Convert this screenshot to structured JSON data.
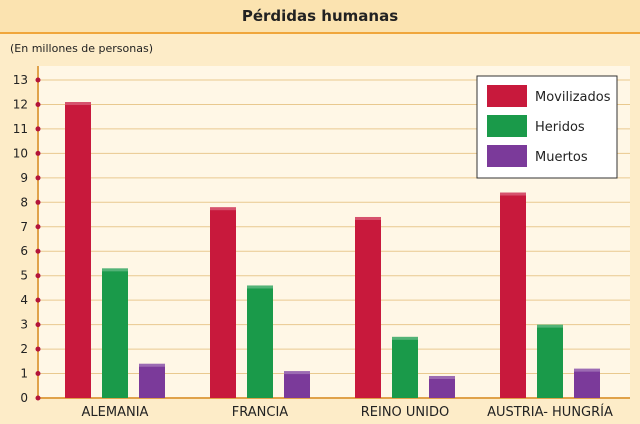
{
  "title": "Pérdidas humanas",
  "unit_label": "(En millones de personas)",
  "colors": {
    "background": "#fdecc8",
    "plot_background": "#fff7e6",
    "grid": "#e9c98f",
    "axis": "#e0a24a",
    "tick_dot": "#b3153a"
  },
  "chart_data": {
    "type": "bar",
    "categories": [
      "ALEMANIA",
      "FRANCIA",
      "REINO UNIDO",
      "AUSTRIA- HUNGRÍA"
    ],
    "series": [
      {
        "name": "Movilizados",
        "color": "#c8193c",
        "values": [
          12.1,
          7.8,
          7.4,
          8.4
        ]
      },
      {
        "name": "Heridos",
        "color": "#1a9a4a",
        "values": [
          5.3,
          4.6,
          2.5,
          3.0
        ]
      },
      {
        "name": "Muertos",
        "color": "#7b3a9a",
        "values": [
          1.4,
          1.1,
          0.9,
          1.2
        ]
      }
    ],
    "ylim": [
      0,
      13
    ],
    "yticks": [
      0,
      1,
      2,
      3,
      4,
      5,
      6,
      7,
      8,
      9,
      10,
      11,
      12,
      13
    ],
    "grid": true,
    "legend_position": "top-right"
  }
}
